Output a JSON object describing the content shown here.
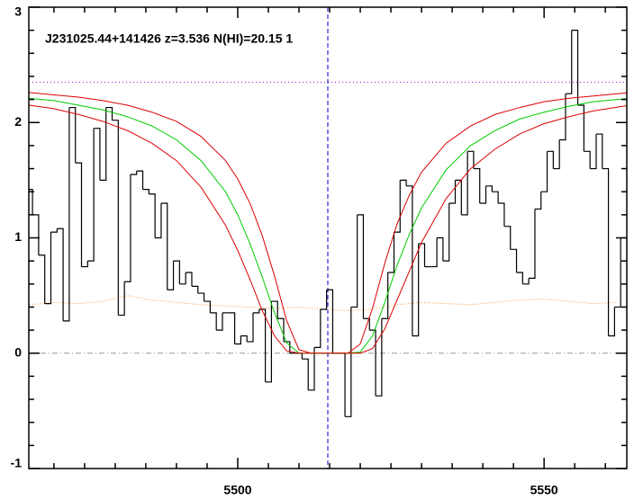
{
  "chart_data": {
    "type": "line",
    "title": "J231025.44+141426 z=3.536 N(HI)=20.15 1",
    "xlim": [
      5465.9,
      5563.5
    ],
    "ylim": [
      -1,
      3
    ],
    "xticks": [
      5500,
      5550
    ],
    "yticks": [
      -1,
      0,
      1,
      2,
      3
    ],
    "xminorticks": [
      5470,
      5475,
      5480,
      5485,
      5490,
      5495,
      5505,
      5510,
      5515,
      5520,
      5525,
      5530,
      5535,
      5540,
      5545,
      5555,
      5560
    ],
    "yminorticks": [
      -0.8,
      -0.6,
      -0.4,
      -0.2,
      0.2,
      0.4,
      0.6,
      0.8,
      1.2,
      1.4,
      1.6,
      1.8,
      2.2,
      2.4,
      2.6,
      2.8
    ],
    "zero_line": 0,
    "continuum": 2.35,
    "center": 5514.7,
    "spectrum": {
      "color": "#000000",
      "x": [
        5466,
        5467,
        5468,
        5469,
        5470,
        5471,
        5472,
        5473,
        5474,
        5475,
        5476,
        5477,
        5478,
        5479,
        5480,
        5481,
        5482,
        5483,
        5484,
        5485,
        5486,
        5487,
        5488,
        5489,
        5490,
        5491,
        5492,
        5493,
        5494,
        5495,
        5496,
        5497,
        5498,
        5499,
        5500,
        5501,
        5502,
        5503,
        5504,
        5505,
        5506,
        5507,
        5508,
        5509,
        5510,
        5511,
        5512,
        5513,
        5514,
        5515,
        5516,
        5517,
        5518,
        5519,
        5520,
        5521,
        5522,
        5523,
        5524,
        5525,
        5526,
        5527,
        5528,
        5529,
        5530,
        5531,
        5532,
        5533,
        5534,
        5535,
        5536,
        5537,
        5538,
        5539,
        5540,
        5541,
        5542,
        5543,
        5544,
        5545,
        5546,
        5547,
        5548,
        5549,
        5550,
        5551,
        5552,
        5553,
        5554,
        5555,
        5556,
        5557,
        5558,
        5559,
        5560,
        5561,
        5562,
        5563
      ],
      "values": [
        1.42,
        1.2,
        0.85,
        0.43,
        1.05,
        1.08,
        0.28,
        2.13,
        1.65,
        0.75,
        0.8,
        1.95,
        1.5,
        2.13,
        2.02,
        0.33,
        0.62,
        1.55,
        1.58,
        1.42,
        1.38,
        1.0,
        1.3,
        0.55,
        0.8,
        0.6,
        0.7,
        0.58,
        0.52,
        0.45,
        0.35,
        0.2,
        0.35,
        0.35,
        0.08,
        0.15,
        0.1,
        0.35,
        0.38,
        -0.25,
        0.45,
        0.3,
        0.1,
        0.0,
        0.0,
        -0.05,
        -0.32,
        0.05,
        0.38,
        0.55,
        0.0,
        0.0,
        -0.55,
        0.4,
        1.2,
        0.3,
        0.2,
        -0.37,
        0.3,
        0.7,
        1.05,
        1.5,
        1.45,
        0.15,
        0.95,
        0.75,
        0.75,
        1.0,
        0.8,
        1.3,
        1.5,
        1.2,
        1.75,
        1.6,
        1.3,
        1.45,
        1.4,
        1.3,
        1.1,
        0.9,
        0.7,
        0.6,
        0.65,
        1.25,
        1.4,
        1.75,
        1.6,
        1.85,
        2.25,
        2.8,
        2.15,
        1.75,
        1.6,
        1.9,
        1.6,
        0.15,
        0.4,
        1.0
      ]
    },
    "error": {
      "color": "#ff9933",
      "x": [
        5466,
        5470,
        5474,
        5478,
        5482,
        5486,
        5490,
        5494,
        5498,
        5502,
        5506,
        5510,
        5514,
        5518,
        5522,
        5526,
        5530,
        5534,
        5538,
        5542,
        5546,
        5550,
        5554,
        5558,
        5562
      ],
      "values": [
        0.42,
        0.44,
        0.43,
        0.45,
        0.5,
        0.46,
        0.44,
        0.42,
        0.41,
        0.4,
        0.39,
        0.4,
        0.38,
        0.37,
        0.38,
        0.42,
        0.44,
        0.43,
        0.42,
        0.44,
        0.46,
        0.47,
        0.45,
        0.43,
        0.44
      ]
    },
    "model_x": [
      5466,
      5470,
      5474,
      5478,
      5482,
      5486,
      5490,
      5494,
      5498,
      5500,
      5502,
      5504,
      5506,
      5508,
      5510,
      5512,
      5514,
      5516,
      5518,
      5520,
      5522,
      5524,
      5526,
      5528,
      5530,
      5534,
      5538,
      5542,
      5546,
      5550,
      5554,
      5558,
      5564
    ],
    "series": [
      {
        "color": "#dd0000",
        "values": [
          2.26,
          2.24,
          2.22,
          2.19,
          2.15,
          2.09,
          2.01,
          1.88,
          1.67,
          1.51,
          1.3,
          1.02,
          0.67,
          0.28,
          0.03,
          0,
          0,
          0,
          0,
          0.08,
          0.39,
          0.78,
          1.12,
          1.37,
          1.57,
          1.82,
          1.97,
          2.07,
          2.13,
          2.18,
          2.21,
          2.23,
          2.26
        ]
      },
      {
        "color": "#00cc00",
        "values": [
          2.21,
          2.19,
          2.15,
          2.11,
          2.05,
          1.97,
          1.85,
          1.67,
          1.4,
          1.2,
          0.95,
          0.66,
          0.35,
          0.09,
          0,
          0,
          0,
          0,
          0,
          0.01,
          0.15,
          0.44,
          0.76,
          1.03,
          1.26,
          1.59,
          1.8,
          1.93,
          2.03,
          2.09,
          2.14,
          2.18,
          2.21
        ]
      },
      {
        "color": "#dd0000",
        "values": [
          2.15,
          2.12,
          2.07,
          2.01,
          1.93,
          1.82,
          1.67,
          1.44,
          1.11,
          0.89,
          0.64,
          0.37,
          0.15,
          0.02,
          0,
          0,
          0,
          0,
          0,
          0,
          0.04,
          0.21,
          0.46,
          0.71,
          0.96,
          1.34,
          1.6,
          1.77,
          1.9,
          1.99,
          2.05,
          2.1,
          2.15
        ]
      }
    ]
  }
}
